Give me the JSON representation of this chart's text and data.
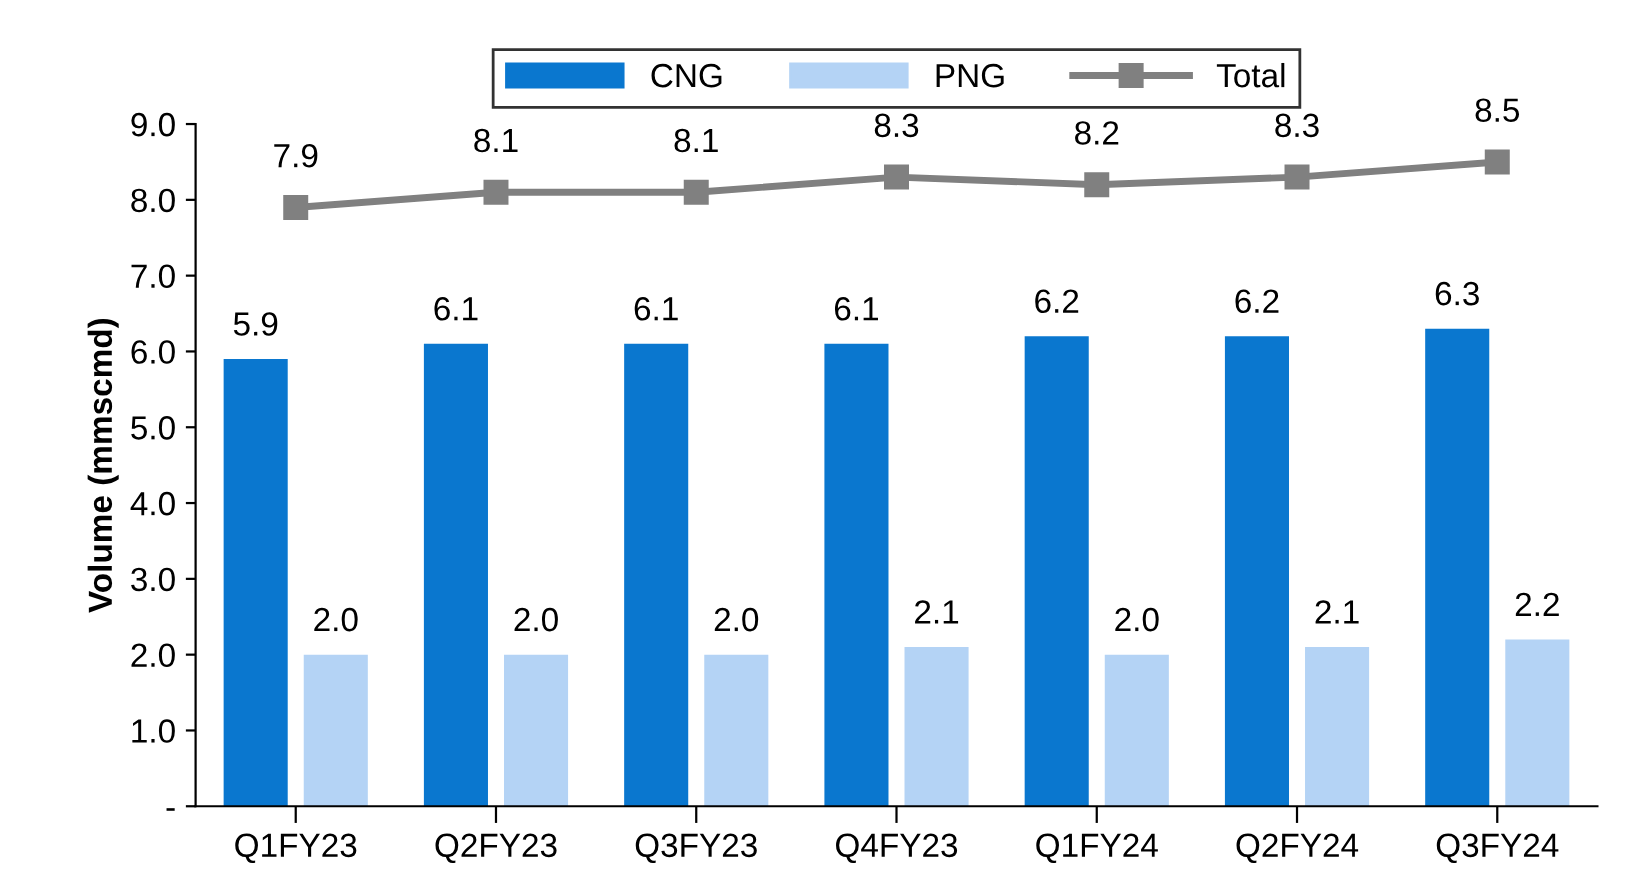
{
  "chart_data": {
    "type": "bar",
    "ylabel": "Volume (mmscmd)",
    "categories": [
      "Q1FY23",
      "Q2FY23",
      "Q3FY23",
      "Q4FY23",
      "Q1FY24",
      "Q2FY24",
      "Q3FY24"
    ],
    "series": [
      {
        "name": "CNG",
        "color": "#0a77cf",
        "values": [
          5.9,
          6.1,
          6.1,
          6.1,
          6.2,
          6.2,
          6.3
        ],
        "value_labels": [
          "5.9",
          "6.1",
          "6.1",
          "6.1",
          "6.2",
          "6.2",
          "6.3"
        ]
      },
      {
        "name": "PNG",
        "color": "#b4d3f5",
        "values": [
          2.0,
          2.0,
          2.0,
          2.1,
          2.0,
          2.1,
          2.2
        ],
        "value_labels": [
          "2.0",
          "2.0",
          "2.0",
          "2.1",
          "2.0",
          "2.1",
          "2.2"
        ]
      },
      {
        "name": "Total",
        "type": "line",
        "color": "#808080",
        "marker": "square",
        "values": [
          7.9,
          8.1,
          8.1,
          8.3,
          8.2,
          8.3,
          8.5
        ],
        "value_labels": [
          "7.9",
          "8.1",
          "8.1",
          "8.3",
          "8.2",
          "8.3",
          "8.5"
        ]
      }
    ],
    "ylim": [
      0,
      9
    ],
    "yticks": [
      {
        "value": 0,
        "label": "-"
      },
      {
        "value": 1,
        "label": "1.0"
      },
      {
        "value": 2,
        "label": "2.0"
      },
      {
        "value": 3,
        "label": "3.0"
      },
      {
        "value": 4,
        "label": "4.0"
      },
      {
        "value": 5,
        "label": "5.0"
      },
      {
        "value": 6,
        "label": "6.0"
      },
      {
        "value": 7,
        "label": "7.0"
      },
      {
        "value": 8,
        "label": "8.0"
      },
      {
        "value": 9,
        "label": "9.0"
      }
    ],
    "grid": false,
    "legend": "top"
  }
}
